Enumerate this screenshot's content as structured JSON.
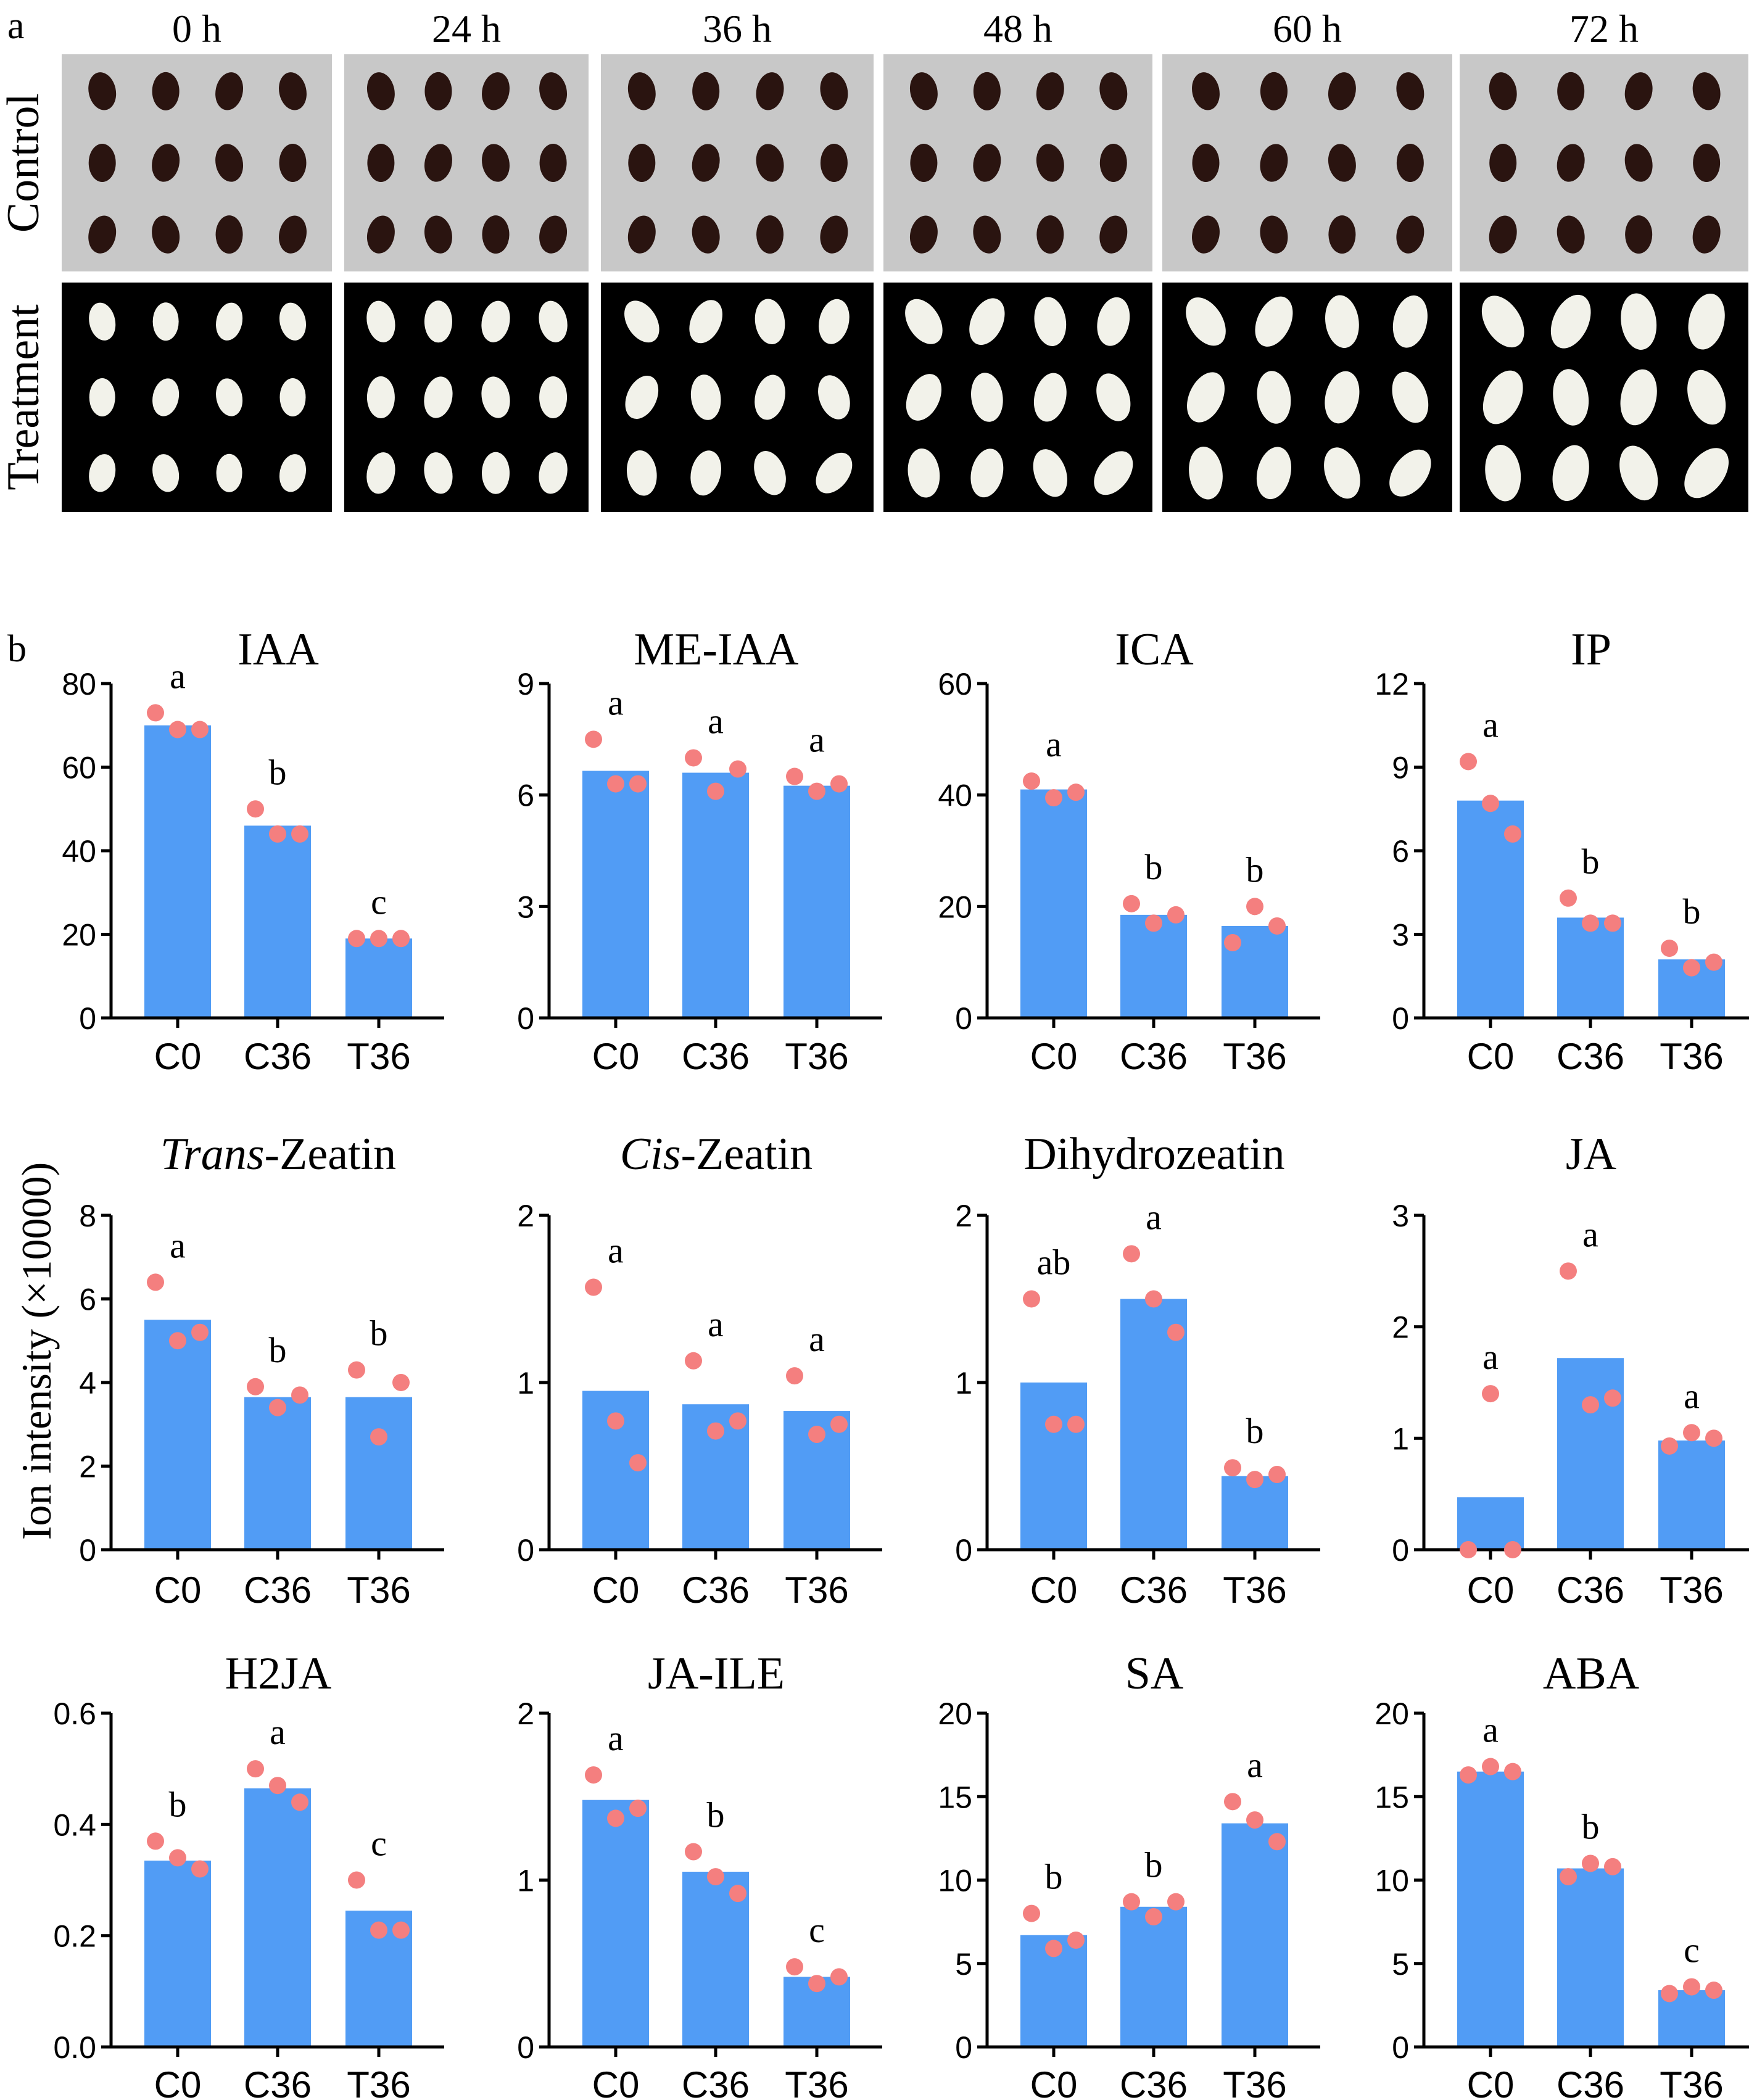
{
  "panel_a": {
    "label": "a",
    "time_points": [
      "0 h",
      "24 h",
      "36 h",
      "48 h",
      "60 h",
      "72 h"
    ],
    "rows": [
      {
        "label": "Control",
        "background": "#c8c8c8",
        "seed_color": "#2a1410"
      },
      {
        "label": "Treatment",
        "background": "#000000",
        "seed_color": "#f2f2ea"
      }
    ]
  },
  "panel_b": {
    "label": "b",
    "ylabel": "Ion intensity (×10000)"
  },
  "colors": {
    "bar": "#519cf5",
    "point": "#f47f7f",
    "axis": "#000000"
  },
  "chart_data": [
    {
      "type": "bar",
      "title": "IAA",
      "categories": [
        "C0",
        "C36",
        "T36"
      ],
      "values": [
        70,
        46,
        19
      ],
      "points": [
        [
          73,
          69,
          69
        ],
        [
          50,
          44,
          44
        ],
        [
          19,
          19,
          19
        ]
      ],
      "letters": [
        "a",
        "b",
        "c"
      ],
      "ylim": [
        0,
        80
      ],
      "yticks": [
        "0",
        "20",
        "40",
        "60",
        "80"
      ]
    },
    {
      "type": "bar",
      "title": "ME-IAA",
      "categories": [
        "C0",
        "C36",
        "T36"
      ],
      "values": [
        6.65,
        6.6,
        6.25
      ],
      "points": [
        [
          7.5,
          6.3,
          6.3
        ],
        [
          7.0,
          6.1,
          6.7
        ],
        [
          6.5,
          6.1,
          6.3
        ]
      ],
      "letters": [
        "a",
        "a",
        "a"
      ],
      "ylim": [
        0,
        9
      ],
      "yticks": [
        "0",
        "3",
        "6",
        "9"
      ]
    },
    {
      "type": "bar",
      "title": "ICA",
      "categories": [
        "C0",
        "C36",
        "T36"
      ],
      "values": [
        41,
        18.5,
        16.5
      ],
      "points": [
        [
          42.5,
          39.5,
          40.5
        ],
        [
          20.5,
          17,
          18.5
        ],
        [
          13.5,
          20,
          16.5
        ]
      ],
      "letters": [
        "a",
        "b",
        "b"
      ],
      "ylim": [
        0,
        60
      ],
      "yticks": [
        "0",
        "20",
        "40",
        "60"
      ]
    },
    {
      "type": "bar",
      "title": "IP",
      "categories": [
        "C0",
        "C36",
        "T36"
      ],
      "values": [
        7.8,
        3.6,
        2.1
      ],
      "points": [
        [
          9.2,
          7.7,
          6.6
        ],
        [
          4.3,
          3.4,
          3.4
        ],
        [
          2.5,
          1.8,
          2.0
        ]
      ],
      "letters": [
        "a",
        "b",
        "b"
      ],
      "ylim": [
        0,
        12
      ],
      "yticks": [
        "0",
        "3",
        "6",
        "9",
        "12"
      ]
    },
    {
      "type": "bar",
      "title_parts": [
        {
          "text": "Trans",
          "italic": true
        },
        {
          "text": "-Zeatin",
          "italic": false
        }
      ],
      "categories": [
        "C0",
        "C36",
        "T36"
      ],
      "values": [
        5.5,
        3.65,
        3.65
      ],
      "points": [
        [
          6.4,
          5.0,
          5.2
        ],
        [
          3.9,
          3.4,
          3.7
        ],
        [
          4.3,
          2.7,
          4.0
        ]
      ],
      "letters": [
        "a",
        "b",
        "b"
      ],
      "ylim": [
        0,
        8
      ],
      "yticks": [
        "0",
        "2",
        "4",
        "6",
        "8"
      ]
    },
    {
      "type": "bar",
      "title_parts": [
        {
          "text": "Cis",
          "italic": true
        },
        {
          "text": "-Zeatin",
          "italic": false
        }
      ],
      "categories": [
        "C0",
        "C36",
        "T36"
      ],
      "values": [
        0.95,
        0.87,
        0.83
      ],
      "points": [
        [
          1.57,
          0.77,
          0.52
        ],
        [
          1.13,
          0.71,
          0.77
        ],
        [
          1.04,
          0.69,
          0.75
        ]
      ],
      "letters": [
        "a",
        "a",
        "a"
      ],
      "ylim": [
        0,
        2
      ],
      "yticks": [
        "0",
        "1",
        "2"
      ]
    },
    {
      "type": "bar",
      "title": "Dihydrozeatin",
      "categories": [
        "C0",
        "C36",
        "T36"
      ],
      "values": [
        1.0,
        1.5,
        0.44
      ],
      "points": [
        [
          1.5,
          0.75,
          0.75
        ],
        [
          1.77,
          1.5,
          1.3
        ],
        [
          0.49,
          0.42,
          0.45
        ]
      ],
      "letters": [
        "ab",
        "a",
        "b"
      ],
      "ylim": [
        0,
        2
      ],
      "yticks": [
        "0",
        "1",
        "2"
      ]
    },
    {
      "type": "bar",
      "title": "JA",
      "categories": [
        "C0",
        "C36",
        "T36"
      ],
      "values": [
        0.47,
        1.72,
        0.98
      ],
      "points": [
        [
          0.0,
          1.4,
          0.0
        ],
        [
          2.5,
          1.3,
          1.36
        ],
        [
          0.93,
          1.05,
          1.0
        ]
      ],
      "letters": [
        "a",
        "a",
        "a"
      ],
      "ylim": [
        0,
        3
      ],
      "yticks": [
        "0",
        "1",
        "2",
        "3"
      ]
    },
    {
      "type": "bar",
      "title": "H2JA",
      "categories": [
        "C0",
        "C36",
        "T36"
      ],
      "values": [
        0.335,
        0.465,
        0.245
      ],
      "points": [
        [
          0.37,
          0.34,
          0.32
        ],
        [
          0.5,
          0.47,
          0.44
        ],
        [
          0.3,
          0.21,
          0.21
        ]
      ],
      "letters": [
        "b",
        "a",
        "c"
      ],
      "ylim": [
        0,
        0.6
      ],
      "yticks": [
        "0.0",
        "0.2",
        "0.4",
        "0.6"
      ]
    },
    {
      "type": "bar",
      "title": "JA-ILE",
      "categories": [
        "C0",
        "C36",
        "T36"
      ],
      "values": [
        1.48,
        1.05,
        0.42
      ],
      "points": [
        [
          1.63,
          1.37,
          1.43
        ],
        [
          1.17,
          1.02,
          0.92
        ],
        [
          0.48,
          0.38,
          0.42
        ]
      ],
      "letters": [
        "a",
        "b",
        "c"
      ],
      "ylim": [
        0,
        2
      ],
      "yticks": [
        "0",
        "1",
        "2"
      ]
    },
    {
      "type": "bar",
      "title": "SA",
      "categories": [
        "C0",
        "C36",
        "T36"
      ],
      "values": [
        6.7,
        8.4,
        13.4
      ],
      "points": [
        [
          8.0,
          5.9,
          6.4
        ],
        [
          8.7,
          7.8,
          8.7
        ],
        [
          14.7,
          13.6,
          12.3
        ]
      ],
      "letters": [
        "b",
        "b",
        "a"
      ],
      "ylim": [
        0,
        20
      ],
      "yticks": [
        "0",
        "5",
        "10",
        "15",
        "20"
      ]
    },
    {
      "type": "bar",
      "title": "ABA",
      "categories": [
        "C0",
        "C36",
        "T36"
      ],
      "values": [
        16.5,
        10.7,
        3.4
      ],
      "points": [
        [
          16.3,
          16.8,
          16.5
        ],
        [
          10.2,
          11.0,
          10.8
        ],
        [
          3.2,
          3.6,
          3.4
        ]
      ],
      "letters": [
        "a",
        "b",
        "c"
      ],
      "ylim": [
        0,
        20
      ],
      "yticks": [
        "0",
        "5",
        "10",
        "15",
        "20"
      ]
    }
  ]
}
